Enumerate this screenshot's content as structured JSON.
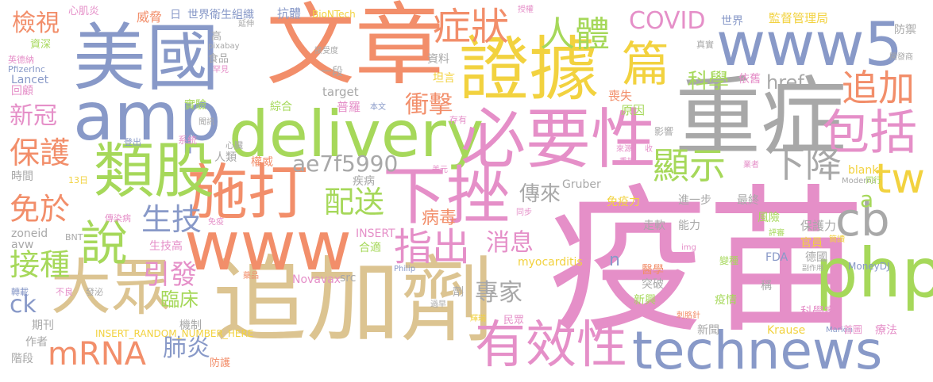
{
  "palette": {
    "blue": "#8899c8",
    "orange": "#f28e6a",
    "green": "#a6d85a",
    "pink": "#e58fc8",
    "tan": "#dcc491",
    "gray": "#a8a8a8",
    "yellow": "#f2d23f"
  },
  "words": [
    {
      "text": "疫苗",
      "color": "pink"
    },
    {
      "text": "重症",
      "color": "gray"
    },
    {
      "text": "文章",
      "color": "orange"
    },
    {
      "text": "美國",
      "color": "blue"
    },
    {
      "text": "追加劑",
      "color": "tan"
    },
    {
      "text": "證據",
      "color": "yellow"
    },
    {
      "text": "delivery",
      "color": "green"
    },
    {
      "text": "technews",
      "color": "blue"
    },
    {
      "text": "必要性",
      "color": "pink"
    },
    {
      "text": "amp",
      "color": "blue"
    },
    {
      "text": "www5",
      "color": "blue"
    },
    {
      "text": "www",
      "color": "orange"
    },
    {
      "text": "施打",
      "color": "orange"
    },
    {
      "text": "類股",
      "color": "green"
    },
    {
      "text": "大眾",
      "color": "tan"
    },
    {
      "text": "下挫",
      "color": "pink"
    },
    {
      "text": "php",
      "color": "green"
    },
    {
      "text": "cb",
      "color": "gray"
    },
    {
      "text": "有效性",
      "color": "pink"
    },
    {
      "text": "篇",
      "color": "yellow"
    },
    {
      "text": "症狀",
      "color": "orange"
    },
    {
      "text": "包括",
      "color": "pink"
    },
    {
      "text": "追加",
      "color": "orange"
    },
    {
      "text": "人體",
      "color": "green"
    },
    {
      "text": "指出",
      "color": "pink"
    },
    {
      "text": "說",
      "color": "green"
    },
    {
      "text": "tw",
      "color": "yellow"
    },
    {
      "text": "顯示",
      "color": "green"
    },
    {
      "text": "下降",
      "color": "gray"
    },
    {
      "text": "mRNA",
      "color": "orange"
    },
    {
      "text": "保護",
      "color": "orange"
    },
    {
      "text": "接種",
      "color": "green"
    },
    {
      "text": "免於",
      "color": "orange"
    },
    {
      "text": "生技",
      "color": "blue"
    },
    {
      "text": "配送",
      "color": "green"
    },
    {
      "text": "引發",
      "color": "pink"
    },
    {
      "text": "ae7f5990",
      "color": "gray"
    },
    {
      "text": "COVID",
      "color": "pink"
    },
    {
      "text": "檢視",
      "color": "orange"
    },
    {
      "text": "消息",
      "color": "pink"
    },
    {
      "text": "衝擊",
      "color": "orange"
    },
    {
      "text": "傳來",
      "color": "gray"
    },
    {
      "text": "專家",
      "color": "gray"
    },
    {
      "text": "科學",
      "color": "green"
    },
    {
      "text": "href",
      "color": "gray"
    },
    {
      "text": "新冠",
      "color": "pink"
    },
    {
      "text": "ck",
      "color": "blue"
    },
    {
      "text": "肺炎",
      "color": "blue"
    },
    {
      "text": "a",
      "color": "green"
    },
    {
      "text": "病毒",
      "color": "orange"
    },
    {
      "text": "n",
      "color": "blue"
    },
    {
      "text": "臨床",
      "color": "green"
    },
    {
      "text": "世界衛生組織",
      "color": "blue"
    },
    {
      "text": "日",
      "color": "blue"
    },
    {
      "text": "抗體",
      "color": "blue"
    },
    {
      "text": "BioNTech",
      "color": "yellow"
    },
    {
      "text": "威脅",
      "color": "orange"
    },
    {
      "text": "心肌炎",
      "color": "pink"
    },
    {
      "text": "授權",
      "color": "pink"
    },
    {
      "text": "監督管理局",
      "color": "yellow"
    },
    {
      "text": "世界",
      "color": "blue"
    },
    {
      "text": "防禦",
      "color": "gray"
    },
    {
      "text": "開發商",
      "color": "gray"
    },
    {
      "text": "資深",
      "color": "green"
    },
    {
      "text": "英德納",
      "color": "pink"
    },
    {
      "text": "PfizerInc",
      "color": "blue"
    },
    {
      "text": "Lancet",
      "color": "blue"
    },
    {
      "text": "回顧",
      "color": "pink"
    },
    {
      "text": "時間",
      "color": "gray"
    },
    {
      "text": "13日",
      "color": "yellow"
    },
    {
      "text": "zoneid",
      "color": "gray"
    },
    {
      "text": "avw",
      "color": "gray"
    },
    {
      "text": "BNT",
      "color": "gray"
    },
    {
      "text": "期刊",
      "color": "gray"
    },
    {
      "text": "作者",
      "color": "gray"
    },
    {
      "text": "階段",
      "color": "gray"
    },
    {
      "text": "轉載",
      "color": "blue"
    },
    {
      "text": "不良",
      "color": "pink"
    },
    {
      "text": "發泌",
      "color": "gray"
    },
    {
      "text": "高",
      "color": "gray"
    },
    {
      "text": "pixabay",
      "color": "gray"
    },
    {
      "text": "延伸",
      "color": "gray"
    },
    {
      "text": "食品",
      "color": "gray"
    },
    {
      "text": "罕見",
      "color": "pink"
    },
    {
      "text": "接受度",
      "color": "gray"
    },
    {
      "text": "一段",
      "color": "gray"
    },
    {
      "text": "資料",
      "color": "gray"
    },
    {
      "text": "坦言",
      "color": "yellow"
    },
    {
      "text": "依舊",
      "color": "pink"
    },
    {
      "text": "真實",
      "color": "gray"
    },
    {
      "text": "target",
      "color": "gray"
    },
    {
      "text": "綜合",
      "color": "green"
    },
    {
      "text": "普羅",
      "color": "pink"
    },
    {
      "text": "本文",
      "color": "blue"
    },
    {
      "text": "實驗",
      "color": "green"
    },
    {
      "text": "聞訊",
      "color": "gray"
    },
    {
      "text": "登出",
      "color": "blue"
    },
    {
      "text": "系統",
      "color": "pink"
    },
    {
      "text": "心臟",
      "color": "gray"
    },
    {
      "text": "人類",
      "color": "gray"
    },
    {
      "text": "權威",
      "color": "orange"
    },
    {
      "text": "存有",
      "color": "pink"
    },
    {
      "text": "喪失",
      "color": "orange"
    },
    {
      "text": "原因",
      "color": "green"
    },
    {
      "text": "影響",
      "color": "gray"
    },
    {
      "text": "收",
      "color": "pink"
    },
    {
      "text": "來源",
      "color": "pink"
    },
    {
      "text": "重捶",
      "color": "pink"
    },
    {
      "text": "blank",
      "color": "yellow"
    },
    {
      "text": "業者",
      "color": "pink"
    },
    {
      "text": "Moderna",
      "color": "gray"
    },
    {
      "text": "疾病",
      "color": "gray"
    },
    {
      "text": "美元",
      "color": "pink"
    },
    {
      "text": "Gruber",
      "color": "gray"
    },
    {
      "text": "免疫力",
      "color": "yellow"
    },
    {
      "text": "進一步",
      "color": "gray"
    },
    {
      "text": "最終",
      "color": "gray"
    },
    {
      "text": "風險",
      "color": "green"
    },
    {
      "text": "同行",
      "color": "green"
    },
    {
      "text": "傳染病",
      "color": "pink"
    },
    {
      "text": "免疫",
      "color": "pink"
    },
    {
      "text": "同步",
      "color": "pink"
    },
    {
      "text": "走軟",
      "color": "gray"
    },
    {
      "text": "能力",
      "color": "gray"
    },
    {
      "text": "保護力",
      "color": "gray"
    },
    {
      "text": "評審",
      "color": "green"
    },
    {
      "text": "簡讀",
      "color": "yellow"
    },
    {
      "text": "生技高",
      "color": "pink"
    },
    {
      "text": "INSERT",
      "color": "pink"
    },
    {
      "text": "合適",
      "color": "green"
    },
    {
      "text": "官員",
      "color": "yellow"
    },
    {
      "text": "img",
      "color": "pink"
    },
    {
      "text": "德國",
      "color": "gray"
    },
    {
      "text": "FDA",
      "color": "blue"
    },
    {
      "text": "變種",
      "color": "green"
    },
    {
      "text": "副作用",
      "color": "gray"
    },
    {
      "text": "MoneyDJ",
      "color": "blue"
    },
    {
      "text": "myocarditis",
      "color": "yellow"
    },
    {
      "text": "醫學",
      "color": "orange"
    },
    {
      "text": "突破",
      "color": "gray"
    },
    {
      "text": "藥品",
      "color": "orange"
    },
    {
      "text": "Novavax",
      "color": "pink"
    },
    {
      "text": "src",
      "color": "gray"
    },
    {
      "text": "Philip",
      "color": "blue"
    },
    {
      "text": "劑",
      "color": "gray"
    },
    {
      "text": "稱",
      "color": "gray"
    },
    {
      "text": "疫情",
      "color": "green"
    },
    {
      "text": "新興",
      "color": "green"
    },
    {
      "text": "過早",
      "color": "gray"
    },
    {
      "text": "輝瑞",
      "color": "yellow"
    },
    {
      "text": "民眾",
      "color": "pink"
    },
    {
      "text": "機制",
      "color": "gray"
    },
    {
      "text": "科學家",
      "color": "pink"
    },
    {
      "text": "刺胳針",
      "color": "orange"
    },
    {
      "text": "新聞",
      "color": "gray"
    },
    {
      "text": "Krause",
      "color": "yellow"
    },
    {
      "text": "Marion",
      "color": "blue"
    },
    {
      "text": "首圖",
      "color": "pink"
    },
    {
      "text": "療法",
      "color": "pink"
    },
    {
      "text": "防護",
      "color": "orange"
    },
    {
      "text": "INSERT_RANDOM_NUMBER_HERE",
      "color": "yellow"
    },
    {
      "text": "對",
      "color": "pink"
    }
  ]
}
